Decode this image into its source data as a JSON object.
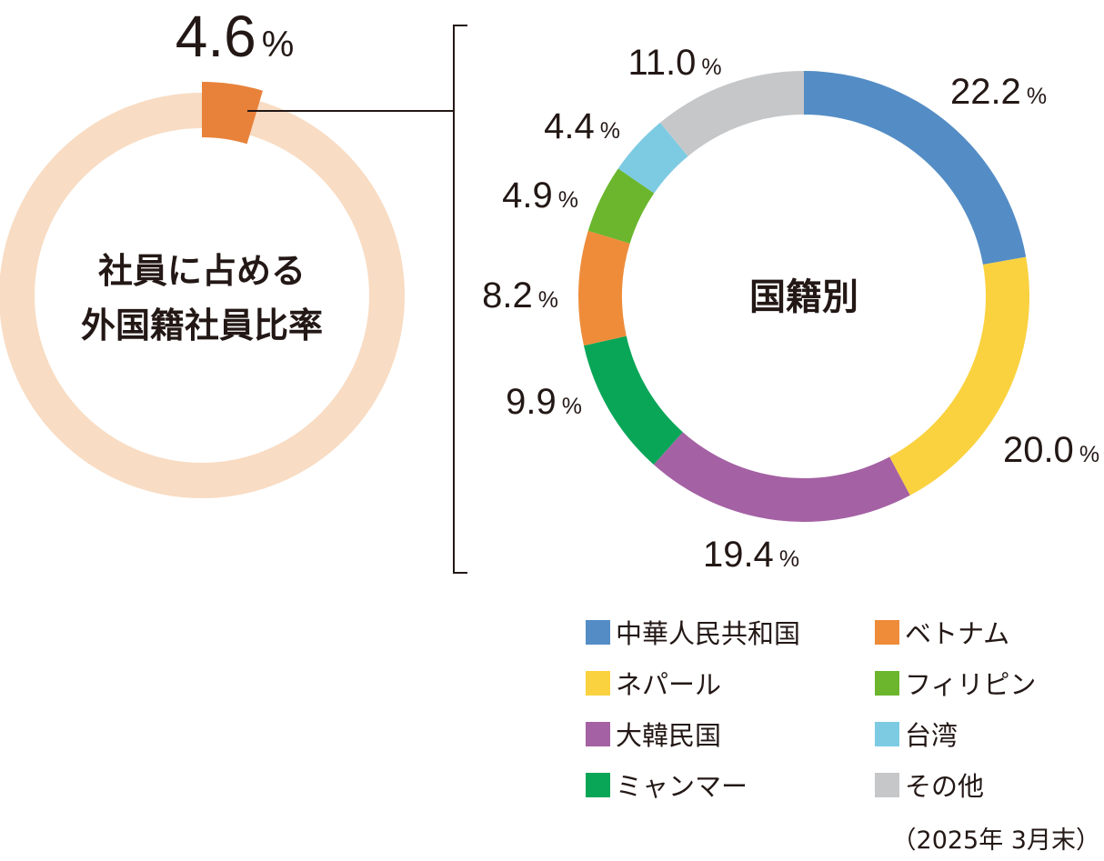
{
  "chart_data": [
    {
      "type": "pie",
      "variant": "donut",
      "center_label": [
        "社員に占める",
        "外国籍社員比率"
      ],
      "value_label": "4.6",
      "unit": "%",
      "values": [
        4.6,
        95.4
      ],
      "colors": {
        "highlight": "#E8823A",
        "remainder": "#F8DCC3"
      }
    },
    {
      "type": "pie",
      "variant": "donut",
      "center_label": "国籍別",
      "unit": "%",
      "categories": [
        "中華人民共和国",
        "ネパール",
        "大韓民国",
        "ミャンマー",
        "ベトナム",
        "フィリピン",
        "台湾",
        "その他"
      ],
      "values": [
        22.2,
        20.0,
        19.4,
        9.9,
        8.2,
        4.9,
        4.4,
        11.0
      ],
      "value_labels": [
        "22.2",
        "20.0",
        "19.4",
        "9.9",
        "8.2",
        "4.9",
        "4.4",
        "11.0"
      ],
      "colors": [
        "#548DC5",
        "#FAD23F",
        "#A461A3",
        "#0AA658",
        "#EE8C3A",
        "#6BB62D",
        "#7DCBE3",
        "#C6C7C9"
      ]
    }
  ],
  "legend": [
    {
      "label": "中華人民共和国",
      "color": "#548DC5"
    },
    {
      "label": "ベトナム",
      "color": "#EE8C3A"
    },
    {
      "label": "ネパール",
      "color": "#FAD23F"
    },
    {
      "label": "フィリピン",
      "color": "#6BB62D"
    },
    {
      "label": "大韓民国",
      "color": "#A461A3"
    },
    {
      "label": "台湾",
      "color": "#7DCBE3"
    },
    {
      "label": "ミャンマー",
      "color": "#0AA658"
    },
    {
      "label": "その他",
      "color": "#C6C7C9"
    }
  ],
  "footnote": "（2025年 3月末）"
}
